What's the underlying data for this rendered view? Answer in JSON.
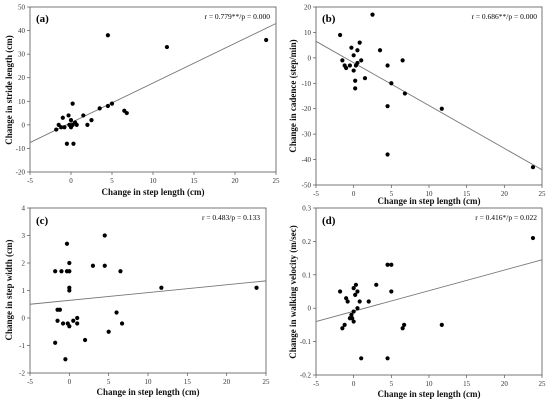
{
  "chart_data": [
    {
      "type": "scatter",
      "panel_label": "(a)",
      "annotation": "r = 0.779**/p = 0.000",
      "xlabel": "Change in step length (cm)",
      "ylabel": "Change in stride length (cm)",
      "xlim": [
        -5,
        25
      ],
      "ylim": [
        -20,
        50
      ],
      "xticks": [
        "-5",
        "0",
        "5",
        "10",
        "15",
        "20",
        "25"
      ],
      "yticks": [
        "-20",
        "-10",
        "0",
        "10",
        "20",
        "30",
        "40",
        "50"
      ],
      "points": [
        [
          -1.8,
          -2
        ],
        [
          -1.5,
          0
        ],
        [
          -1.2,
          -1
        ],
        [
          -1,
          3
        ],
        [
          -0.8,
          -1
        ],
        [
          -0.5,
          -8
        ],
        [
          -0.3,
          4
        ],
        [
          -0.2,
          0
        ],
        [
          0,
          2
        ],
        [
          0,
          -1
        ],
        [
          0.2,
          0
        ],
        [
          0.2,
          9
        ],
        [
          0.5,
          1
        ],
        [
          0.7,
          0
        ],
        [
          0.3,
          -8
        ],
        [
          1.5,
          4
        ],
        [
          2,
          0
        ],
        [
          2.5,
          2
        ],
        [
          3.5,
          7
        ],
        [
          4.5,
          8
        ],
        [
          4.5,
          38
        ],
        [
          5,
          9
        ],
        [
          6.5,
          6
        ],
        [
          6.8,
          5
        ],
        [
          11.7,
          33
        ],
        [
          23.8,
          36
        ]
      ],
      "trendline": [
        [
          -5,
          -7.5
        ],
        [
          25,
          43
        ]
      ],
      "grid": false
    },
    {
      "type": "scatter",
      "panel_label": "(b)",
      "annotation": "r = 0.686**/p = 0.000",
      "xlabel": "Change in step length (cm)",
      "ylabel": "Change in cadence (step/min)",
      "xlim": [
        -5,
        25
      ],
      "ylim": [
        -50,
        20
      ],
      "xticks": [
        "-5",
        "0",
        "5",
        "10",
        "15",
        "20",
        "25"
      ],
      "yticks": [
        "-50",
        "-40",
        "-30",
        "-20",
        "-10",
        "0",
        "10",
        "20"
      ],
      "points": [
        [
          -1.8,
          9
        ],
        [
          -1.5,
          -1
        ],
        [
          -1.2,
          -3
        ],
        [
          -1,
          -4
        ],
        [
          -0.5,
          -3
        ],
        [
          -0.3,
          4
        ],
        [
          0,
          1
        ],
        [
          0,
          -5
        ],
        [
          0.2,
          -9
        ],
        [
          0.2,
          -12
        ],
        [
          0.3,
          -3
        ],
        [
          0.5,
          3
        ],
        [
          0.5,
          -2
        ],
        [
          0.8,
          6
        ],
        [
          1,
          -1
        ],
        [
          1.5,
          -8
        ],
        [
          2.5,
          17
        ],
        [
          3.5,
          3
        ],
        [
          4.5,
          -3
        ],
        [
          4.5,
          -19
        ],
        [
          4.5,
          -38
        ],
        [
          5,
          -10
        ],
        [
          6.5,
          -1
        ],
        [
          6.8,
          -14
        ],
        [
          11.7,
          -20
        ],
        [
          23.8,
          -43
        ]
      ],
      "trendline": [
        [
          -5,
          6.5
        ],
        [
          25,
          -44
        ]
      ],
      "grid": false
    },
    {
      "type": "scatter",
      "panel_label": "(c)",
      "annotation": "r = 0.483/p = 0.133",
      "xlabel": "Change in step length (cm)",
      "ylabel": "Change in step width (cm)",
      "xlim": [
        -5,
        25
      ],
      "ylim": [
        -2,
        4
      ],
      "xticks": [
        "-5",
        "0",
        "5",
        "10",
        "15",
        "20",
        "25"
      ],
      "yticks": [
        "-2",
        "-1",
        "0",
        "1",
        "2",
        "3",
        "4"
      ],
      "points": [
        [
          -1.8,
          1.7
        ],
        [
          -1.5,
          0.3
        ],
        [
          -1.2,
          0.3
        ],
        [
          -1,
          1.7
        ],
        [
          -0.8,
          -0.2
        ],
        [
          -0.5,
          -1.5
        ],
        [
          -0.3,
          2.7
        ],
        [
          -0.3,
          1.7
        ],
        [
          0,
          2
        ],
        [
          0,
          1.7
        ],
        [
          0,
          1.1
        ],
        [
          0,
          1
        ],
        [
          0,
          -0.3
        ],
        [
          -0.2,
          -0.2
        ],
        [
          0.5,
          -0.1
        ],
        [
          1,
          0
        ],
        [
          1,
          -0.2
        ],
        [
          2,
          -0.8
        ],
        [
          3,
          1.9
        ],
        [
          4.5,
          1.9
        ],
        [
          4.5,
          3
        ],
        [
          5,
          -0.5
        ],
        [
          6,
          0.2
        ],
        [
          6.5,
          1.7
        ],
        [
          6.7,
          -0.2
        ],
        [
          11.7,
          1.1
        ],
        [
          23.8,
          1.1
        ],
        [
          -1.8,
          -0.9
        ],
        [
          -1.5,
          -0.1
        ]
      ],
      "trendline": [
        [
          -5,
          0.5
        ],
        [
          25,
          1.35
        ]
      ],
      "grid": false
    },
    {
      "type": "scatter",
      "panel_label": "(d)",
      "annotation": "r = 0.416*/p = 0.022",
      "xlabel": "Change in step length (cm)",
      "ylabel": "Change in walking velocity (m/sec)",
      "xlim": [
        -5,
        25
      ],
      "ylim": [
        -0.2,
        0.3
      ],
      "xticks": [
        "-5",
        "0",
        "5",
        "10",
        "15",
        "20",
        "25"
      ],
      "yticks": [
        "-0.2",
        "-0.1",
        "0",
        "0.1",
        "0.2",
        "0.3"
      ],
      "points": [
        [
          -1.8,
          0.05
        ],
        [
          -1.5,
          -0.06
        ],
        [
          -1.2,
          -0.05
        ],
        [
          -1,
          0.03
        ],
        [
          -0.8,
          0.02
        ],
        [
          -0.5,
          -0.03
        ],
        [
          -0.3,
          -0.02
        ],
        [
          0,
          0.06
        ],
        [
          0,
          -0.01
        ],
        [
          0,
          -0.04
        ],
        [
          0.2,
          0.04
        ],
        [
          0.3,
          0.07
        ],
        [
          0.5,
          0.05
        ],
        [
          0.5,
          0
        ],
        [
          0.8,
          0.02
        ],
        [
          1,
          -0.15
        ],
        [
          2,
          0.02
        ],
        [
          3,
          0.07
        ],
        [
          4.5,
          0.13
        ],
        [
          4.5,
          -0.15
        ],
        [
          5,
          0.13
        ],
        [
          5,
          0.05
        ],
        [
          6.5,
          -0.06
        ],
        [
          6.7,
          -0.05
        ],
        [
          11.7,
          -0.05
        ],
        [
          23.8,
          0.21
        ],
        [
          -0.2,
          -0.03
        ]
      ],
      "trendline": [
        [
          -5,
          -0.04
        ],
        [
          25,
          0.145
        ]
      ],
      "grid": false
    }
  ]
}
